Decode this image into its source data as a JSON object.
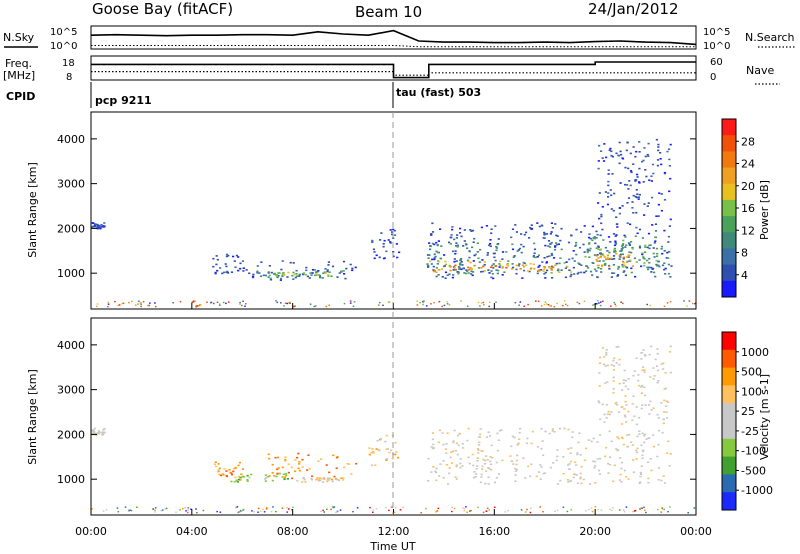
{
  "header": {
    "station": "Goose Bay (fitACF)",
    "beam": "Beam 10",
    "date": "24/Jan/2012"
  },
  "colors": {
    "power_scale": [
      "#1a1aff",
      "#2f4fb0",
      "#3a6fa8",
      "#3f8a7a",
      "#4aa25a",
      "#78c04a",
      "#e8c020",
      "#f0a020",
      "#f07a10",
      "#f05008",
      "#ff1a1a"
    ],
    "velocity_scale": [
      "#ff0000",
      "#ff5a00",
      "#ff9a00",
      "#ffc060",
      "#c8c8c8",
      "#c8c8c8",
      "#86c840",
      "#40a030",
      "#2a6ab0",
      "#1a2aff"
    ]
  },
  "chart_data": [
    {
      "type": "line",
      "name": "noise-panel",
      "left_label": "N.Sky",
      "right_label": "N.Search",
      "y_ticks_left": [
        "10^5",
        "10^0"
      ],
      "y_ticks_right": [
        "10^5",
        "10^0"
      ],
      "x_range_hours": [
        0,
        24
      ],
      "series": [
        {
          "values": [
            0.6,
            0.62,
            0.6,
            0.58,
            0.6,
            0.6,
            0.62,
            0.62,
            0.6,
            0.75,
            0.65,
            0.6,
            0.8,
            0.35,
            0.3,
            0.3,
            0.28,
            0.28,
            0.3,
            0.28,
            0.32,
            0.35,
            0.3,
            0.28,
            0.2
          ]
        },
        {
          "values": [
            0.15,
            0.15,
            0.15,
            0.15,
            0.15,
            0.15,
            0.15,
            0.15,
            0.15,
            0.15,
            0.15,
            0.15,
            0.15,
            0.1,
            0.1,
            0.1,
            0.1,
            0.1,
            0.1,
            0.1,
            0.1,
            0.1,
            0.1,
            0.1,
            0.1
          ]
        }
      ]
    },
    {
      "type": "line",
      "name": "freq-panel",
      "left_label_line1": "Freq.",
      "left_label_line2": "[MHz]",
      "right_label": "Nave",
      "y_ticks_left": [
        "18",
        "8"
      ],
      "y_ticks_right": [
        "60",
        "0"
      ],
      "cpid_label": "CPID",
      "cpid_entries": [
        {
          "start_hour": 0,
          "text": "pcp 9211"
        },
        {
          "start_hour": 12,
          "text": "tau (fast) 503"
        }
      ],
      "x_range_hours": [
        0,
        24
      ],
      "series": [
        {
          "x": [
            0,
            12,
            12,
            13.4,
            13.4,
            20,
            20,
            24
          ],
          "values": [
            0.65,
            0.65,
            0.1,
            0.1,
            0.65,
            0.65,
            0.75,
            0.75
          ]
        },
        {
          "x": [
            0,
            12,
            12,
            13.4,
            13.4,
            24
          ],
          "values": [
            0.35,
            0.35,
            0.2,
            0.2,
            0.3,
            0.3
          ]
        }
      ]
    },
    {
      "type": "heatmap",
      "name": "power",
      "ylabel": "Slant Range [km]",
      "y_ticks": [
        1000,
        2000,
        3000,
        4000
      ],
      "ylim": [
        200,
        4600
      ],
      "x_range_hours": [
        0,
        24
      ],
      "colorbar_label": "Power [dB]",
      "colorbar_ticks": [
        "4",
        "8",
        "12",
        "16",
        "20",
        "24",
        "28"
      ],
      "blobs": [
        {
          "t0": 0.0,
          "t1": 0.5,
          "r0": 2000,
          "r1": 2150,
          "c": 1
        },
        {
          "t0": 4.8,
          "t1": 6.0,
          "r0": 1000,
          "r1": 1450,
          "c": 1
        },
        {
          "t0": 6.0,
          "t1": 10.5,
          "r0": 850,
          "r1": 1300,
          "c": 1
        },
        {
          "t0": 6.5,
          "t1": 10.0,
          "r0": 900,
          "r1": 1100,
          "c": 3
        },
        {
          "t0": 7.0,
          "t1": 9.5,
          "r0": 950,
          "r1": 1050,
          "c": 5
        },
        {
          "t0": 11.0,
          "t1": 12.2,
          "r0": 1300,
          "r1": 2000,
          "c": 1
        },
        {
          "t0": 13.3,
          "t1": 23.0,
          "r0": 900,
          "r1": 2150,
          "c": 1
        },
        {
          "t0": 13.3,
          "t1": 23.0,
          "r0": 1000,
          "r1": 1700,
          "c": 3
        },
        {
          "t0": 13.4,
          "t1": 19.0,
          "r0": 1000,
          "r1": 1300,
          "c": 6
        },
        {
          "t0": 13.5,
          "t1": 18.5,
          "r0": 1050,
          "r1": 1200,
          "c": 8
        },
        {
          "t0": 19.5,
          "t1": 22.5,
          "r0": 1100,
          "r1": 1900,
          "c": 4
        },
        {
          "t0": 20.0,
          "t1": 21.5,
          "r0": 1150,
          "r1": 1450,
          "c": 7
        },
        {
          "t0": 20.0,
          "t1": 23.0,
          "r0": 2200,
          "r1": 4000,
          "c": 1
        }
      ]
    },
    {
      "type": "heatmap",
      "name": "velocity",
      "ylabel": "Slant Range [km]",
      "xlabel": "Time UT",
      "y_ticks": [
        1000,
        2000,
        3000,
        4000
      ],
      "ylim": [
        200,
        4600
      ],
      "x_range_hours": [
        0,
        24
      ],
      "x_ticks": [
        "00:00",
        "04:00",
        "08:00",
        "12:00",
        "16:00",
        "20:00",
        "00:00"
      ],
      "colorbar_label": "Velocity [m s-1]",
      "colorbar_ticks": [
        "1000",
        "500",
        "100",
        "25",
        "-25",
        "-100",
        "-500",
        "-1000"
      ],
      "blobs": [
        {
          "t0": 0.0,
          "t1": 0.5,
          "r0": 2000,
          "r1": 2150,
          "c": 4
        },
        {
          "t0": 4.8,
          "t1": 6.0,
          "r0": 1000,
          "r1": 1400,
          "c": 2
        },
        {
          "t0": 5.5,
          "t1": 8.0,
          "r0": 950,
          "r1": 1150,
          "c": 6
        },
        {
          "t0": 7.0,
          "t1": 10.5,
          "r0": 1000,
          "r1": 1600,
          "c": 2
        },
        {
          "t0": 8.0,
          "t1": 10.0,
          "r0": 950,
          "r1": 1050,
          "c": 4
        },
        {
          "t0": 11.0,
          "t1": 12.2,
          "r0": 1300,
          "r1": 2000,
          "c": 3
        },
        {
          "t0": 13.3,
          "t1": 23.0,
          "r0": 900,
          "r1": 2150,
          "c": 4
        },
        {
          "t0": 20.0,
          "t1": 23.0,
          "r0": 2200,
          "r1": 4000,
          "c": 4
        }
      ]
    }
  ]
}
